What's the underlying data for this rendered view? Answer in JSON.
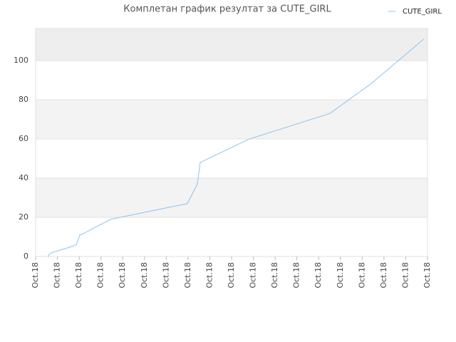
{
  "chart_data": {
    "type": "line",
    "title": "Комплетан график резултат за CUTE_GIRL",
    "x": [
      0.56,
      0.62,
      0.75,
      1.47,
      1.87,
      2.03,
      2.16,
      3.27,
      3.44,
      6.97,
      7.43,
      7.56,
      8.12,
      9.82,
      13.51,
      15.38,
      17.83
    ],
    "series": [
      {
        "name": "CUTE_GIRL",
        "color": "#8cc4ee",
        "values": [
          0,
          1,
          2,
          4.4,
          6,
          11,
          11.5,
          18,
          19,
          27,
          37,
          48,
          51,
          60,
          73,
          88,
          111
        ]
      }
    ],
    "xlim": [
      0,
      18
    ],
    "xticks": [
      {
        "value": 0,
        "label": "Oct.18"
      },
      {
        "value": 1,
        "label": "Oct.18"
      },
      {
        "value": 2,
        "label": "Oct.18"
      },
      {
        "value": 3,
        "label": "Oct.18"
      },
      {
        "value": 4,
        "label": "Oct.18"
      },
      {
        "value": 5,
        "label": "Oct.18"
      },
      {
        "value": 6,
        "label": "Oct.18"
      },
      {
        "value": 7,
        "label": "Oct.18"
      },
      {
        "value": 8,
        "label": "Oct.18"
      },
      {
        "value": 9,
        "label": "Oct.18"
      },
      {
        "value": 10,
        "label": "Oct.18"
      },
      {
        "value": 11,
        "label": "Oct.18"
      },
      {
        "value": 12,
        "label": "Oct.18"
      },
      {
        "value": 13,
        "label": "Oct.18"
      },
      {
        "value": 14,
        "label": "Oct.18"
      },
      {
        "value": 15,
        "label": "Oct.18"
      },
      {
        "value": 16,
        "label": "Oct.18"
      },
      {
        "value": 17,
        "label": "Oct.18"
      },
      {
        "value": 18,
        "label": "Oct.18"
      }
    ],
    "ylim": [
      0,
      116.4
    ],
    "yticks": [
      0,
      20,
      40,
      60,
      80,
      100
    ],
    "grid": true,
    "legend": "top-right"
  }
}
